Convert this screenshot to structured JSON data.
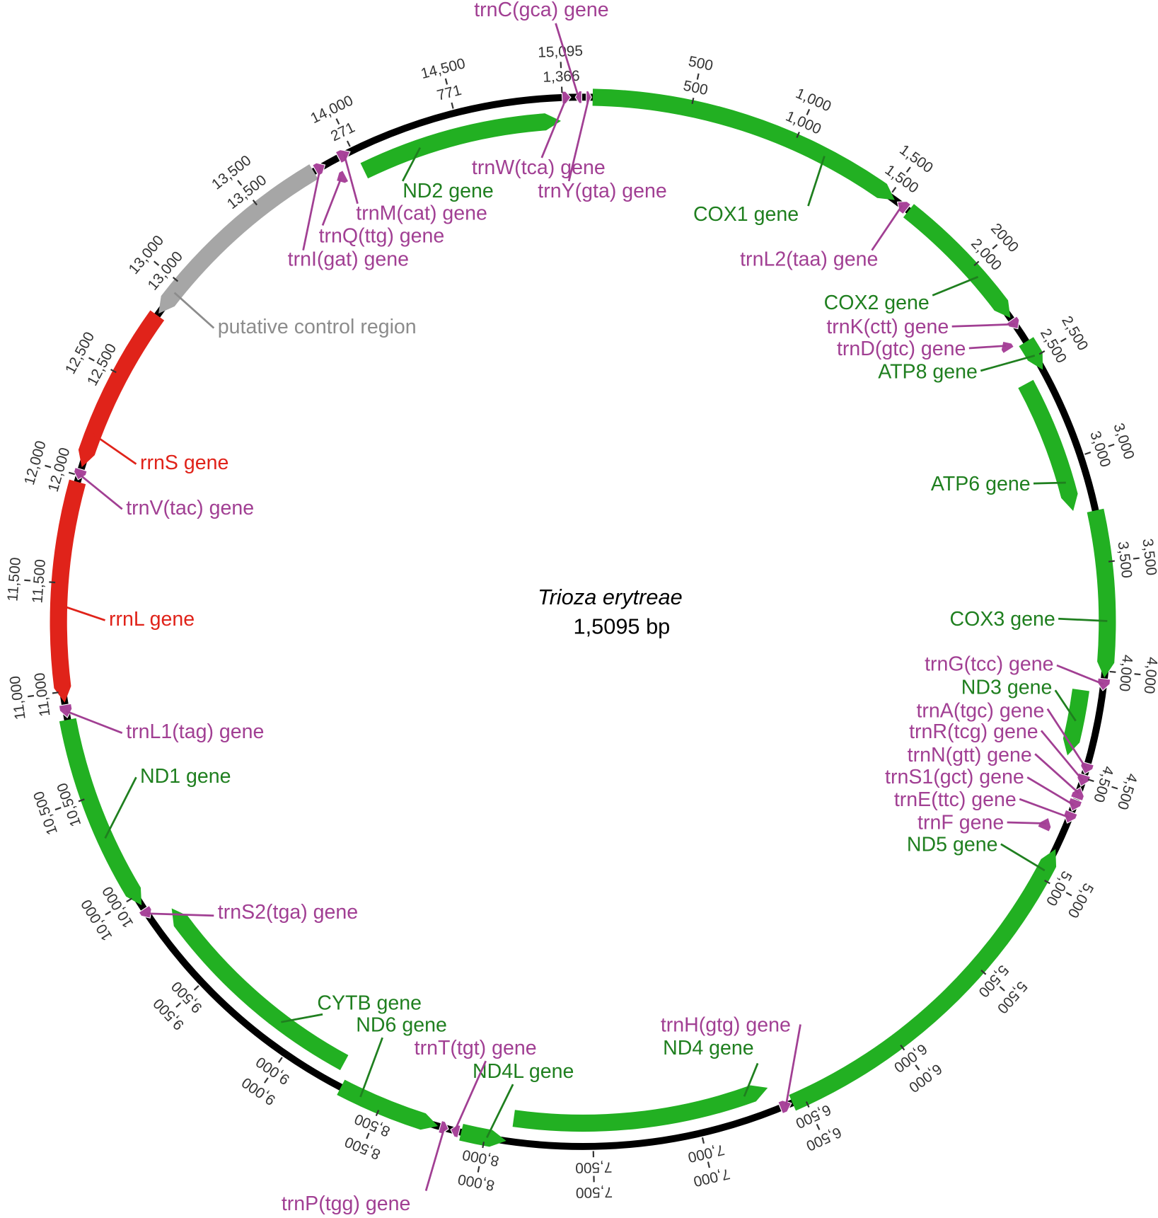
{
  "title": "Trioza erytreae",
  "size_label": "1,5095 bp",
  "ticks": {
    "outer": [
      "500",
      "1,000",
      "1,500",
      "2000",
      "2,500",
      "3,000",
      "3,500",
      "4,000",
      "4,500",
      "5,000",
      "5,500",
      "6,000",
      "6,500",
      "7,000",
      "7,500",
      "8,000",
      "8,500",
      "9,000",
      "9,500",
      "10,000",
      "10,500",
      "11,000",
      "11,500",
      "12,000",
      "12,500",
      "13,000",
      "13,500",
      "14,000",
      "14,500",
      "15,095"
    ],
    "inner": [
      "500",
      "1,000",
      "1,500",
      "2,000",
      "2,500",
      "3,000",
      "3,500",
      "4,000",
      "4,500",
      "5,000",
      "5,500",
      "6,000",
      "6,500",
      "7,000",
      "7,500",
      "8,000",
      "8,500",
      "9,000",
      "9,500",
      "10,000",
      "10,500",
      "11,000",
      "11,500",
      "12,000",
      "12,500",
      "13,000",
      "13,500",
      "271",
      "771",
      "1,366"
    ]
  },
  "genes": [
    {
      "label": "trnC(gca) gene",
      "color": "#a13f93"
    },
    {
      "label": "trnW(tca) gene",
      "color": "#a13f93"
    },
    {
      "label": "trnY(gta) gene",
      "color": "#a13f93"
    },
    {
      "label": "ND2 gene",
      "color": "#1f7f1f"
    },
    {
      "label": "trnM(cat) gene",
      "color": "#a13f93"
    },
    {
      "label": "trnQ(ttg) gene",
      "color": "#a13f93"
    },
    {
      "label": "trnI(gat) gene",
      "color": "#a13f93"
    },
    {
      "label": "COX1 gene",
      "color": "#1f7f1f"
    },
    {
      "label": "trnL2(taa) gene",
      "color": "#a13f93"
    },
    {
      "label": "COX2 gene",
      "color": "#1f7f1f"
    },
    {
      "label": "trnK(ctt) gene",
      "color": "#a13f93"
    },
    {
      "label": "trnD(gtc) gene",
      "color": "#a13f93"
    },
    {
      "label": "ATP8 gene",
      "color": "#1f7f1f"
    },
    {
      "label": "ATP6 gene",
      "color": "#1f7f1f"
    },
    {
      "label": "COX3 gene",
      "color": "#1f7f1f"
    },
    {
      "label": "trnG(tcc) gene",
      "color": "#a13f93"
    },
    {
      "label": "ND3 gene",
      "color": "#1f7f1f"
    },
    {
      "label": "trnA(tgc) gene",
      "color": "#a13f93"
    },
    {
      "label": "trnR(tcg) gene",
      "color": "#a13f93"
    },
    {
      "label": "trnN(gtt) gene",
      "color": "#a13f93"
    },
    {
      "label": "trnS1(gct) gene",
      "color": "#a13f93"
    },
    {
      "label": "trnE(ttc) gene",
      "color": "#a13f93"
    },
    {
      "label": "trnF gene",
      "color": "#a13f93"
    },
    {
      "label": "ND5 gene",
      "color": "#1f7f1f"
    },
    {
      "label": "trnH(gtg) gene",
      "color": "#a13f93"
    },
    {
      "label": "ND4 gene",
      "color": "#1f7f1f"
    },
    {
      "label": "ND4L gene",
      "color": "#1f7f1f"
    },
    {
      "label": "trnT(tgt) gene",
      "color": "#a13f93"
    },
    {
      "label": "ND6 gene",
      "color": "#1f7f1f"
    },
    {
      "label": "CYTB gene",
      "color": "#1f7f1f"
    },
    {
      "label": "trnP(tgg) gene",
      "color": "#a13f93"
    },
    {
      "label": "trnS2(tga) gene",
      "color": "#a13f93"
    },
    {
      "label": "ND1 gene",
      "color": "#1f7f1f"
    },
    {
      "label": "trnL1(tag) gene",
      "color": "#a13f93"
    },
    {
      "label": "rrnL gene",
      "color": "#e0231a"
    },
    {
      "label": "trnV(tac) gene",
      "color": "#a13f93"
    },
    {
      "label": "rrnS gene",
      "color": "#e0231a"
    },
    {
      "label": "putative control region",
      "color": "#8c8c8c"
    }
  ]
}
